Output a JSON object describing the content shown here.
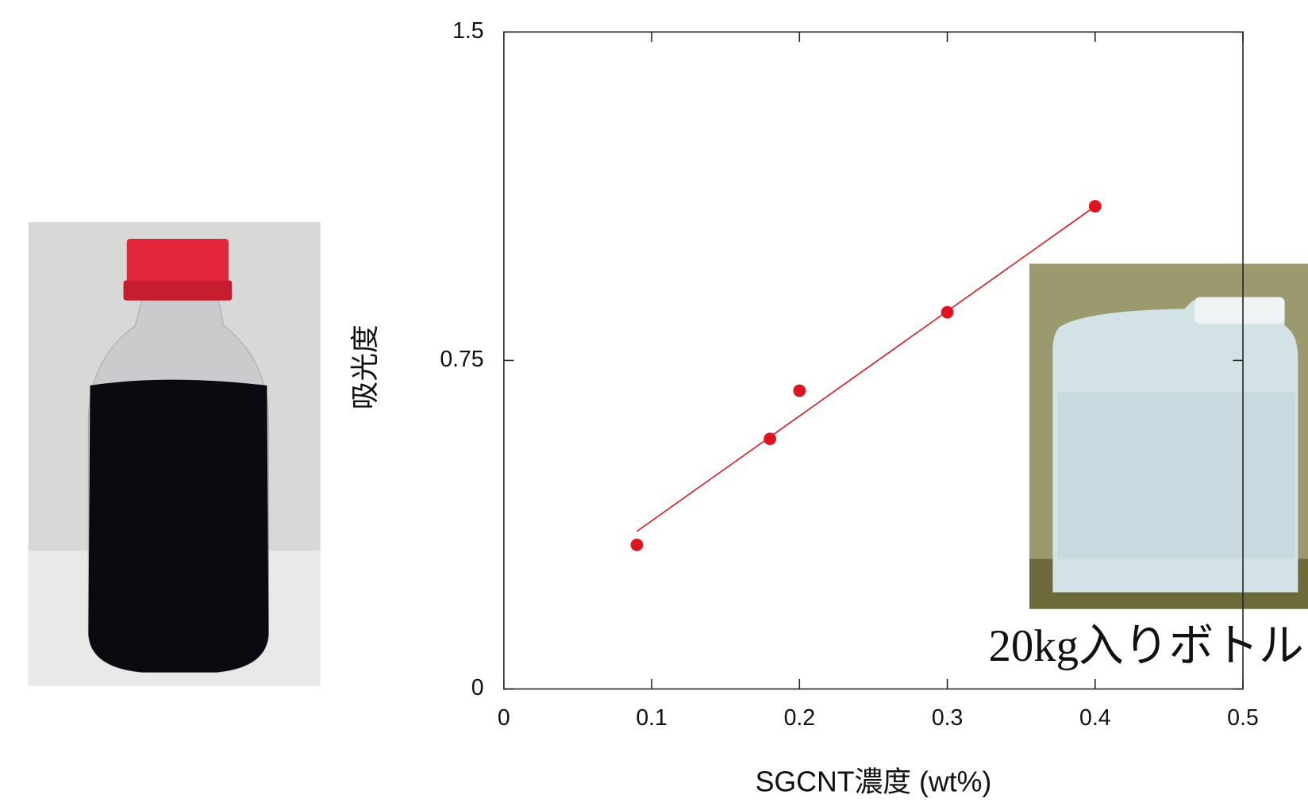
{
  "chart_data": {
    "type": "scatter",
    "xlabel": "SGCNT濃度 (wt%)",
    "ylabel": "吸光度",
    "annotation": "20kg入りボトル",
    "xlim": [
      0,
      0.5
    ],
    "xticks": [
      0,
      0.1,
      0.2,
      0.3,
      0.4,
      0.5
    ],
    "ylim": [
      0,
      1.5
    ],
    "yticks": [
      0,
      0.75,
      1.5
    ],
    "series": [
      {
        "color": "#e0141e",
        "marker": "circle",
        "x": [
          0.09,
          0.18,
          0.2,
          0.3,
          0.4
        ],
        "values": [
          0.329,
          0.571,
          0.681,
          0.86,
          1.102
        ]
      },
      {
        "color": "#e0141e",
        "marker": "none",
        "x": [
          0.09,
          0.4
        ],
        "values": [
          0.36,
          1.102
        ]
      }
    ]
  }
}
